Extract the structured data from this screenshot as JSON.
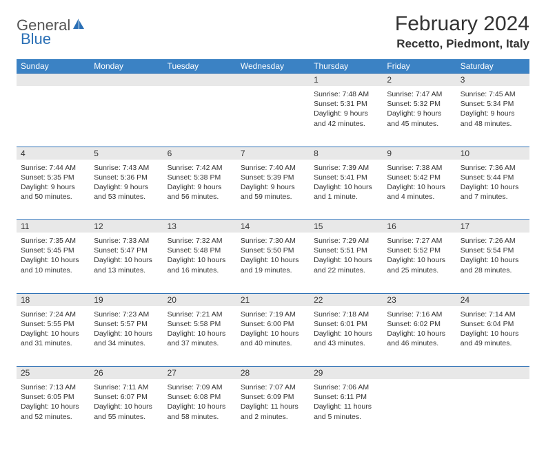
{
  "logo": {
    "text1": "General",
    "text2": "Blue"
  },
  "title": "February 2024",
  "location": "Recetto, Piedmont, Italy",
  "colors": {
    "header_bg": "#3b82c4",
    "header_text": "#ffffff",
    "border": "#2a6fb5",
    "daynum_bg": "#e8e8e8",
    "text": "#333333",
    "logo_gray": "#555555",
    "logo_blue": "#2a6fb5",
    "page_bg": "#ffffff"
  },
  "fonts": {
    "title_size": 30,
    "location_size": 17,
    "weekday_size": 12,
    "daynum_size": 12,
    "info_size": 10.5
  },
  "weekdays": [
    "Sunday",
    "Monday",
    "Tuesday",
    "Wednesday",
    "Thursday",
    "Friday",
    "Saturday"
  ],
  "weeks": [
    [
      null,
      null,
      null,
      null,
      {
        "n": "1",
        "sr": "Sunrise: 7:48 AM",
        "ss": "Sunset: 5:31 PM",
        "d1": "Daylight: 9 hours",
        "d2": "and 42 minutes."
      },
      {
        "n": "2",
        "sr": "Sunrise: 7:47 AM",
        "ss": "Sunset: 5:32 PM",
        "d1": "Daylight: 9 hours",
        "d2": "and 45 minutes."
      },
      {
        "n": "3",
        "sr": "Sunrise: 7:45 AM",
        "ss": "Sunset: 5:34 PM",
        "d1": "Daylight: 9 hours",
        "d2": "and 48 minutes."
      }
    ],
    [
      {
        "n": "4",
        "sr": "Sunrise: 7:44 AM",
        "ss": "Sunset: 5:35 PM",
        "d1": "Daylight: 9 hours",
        "d2": "and 50 minutes."
      },
      {
        "n": "5",
        "sr": "Sunrise: 7:43 AM",
        "ss": "Sunset: 5:36 PM",
        "d1": "Daylight: 9 hours",
        "d2": "and 53 minutes."
      },
      {
        "n": "6",
        "sr": "Sunrise: 7:42 AM",
        "ss": "Sunset: 5:38 PM",
        "d1": "Daylight: 9 hours",
        "d2": "and 56 minutes."
      },
      {
        "n": "7",
        "sr": "Sunrise: 7:40 AM",
        "ss": "Sunset: 5:39 PM",
        "d1": "Daylight: 9 hours",
        "d2": "and 59 minutes."
      },
      {
        "n": "8",
        "sr": "Sunrise: 7:39 AM",
        "ss": "Sunset: 5:41 PM",
        "d1": "Daylight: 10 hours",
        "d2": "and 1 minute."
      },
      {
        "n": "9",
        "sr": "Sunrise: 7:38 AM",
        "ss": "Sunset: 5:42 PM",
        "d1": "Daylight: 10 hours",
        "d2": "and 4 minutes."
      },
      {
        "n": "10",
        "sr": "Sunrise: 7:36 AM",
        "ss": "Sunset: 5:44 PM",
        "d1": "Daylight: 10 hours",
        "d2": "and 7 minutes."
      }
    ],
    [
      {
        "n": "11",
        "sr": "Sunrise: 7:35 AM",
        "ss": "Sunset: 5:45 PM",
        "d1": "Daylight: 10 hours",
        "d2": "and 10 minutes."
      },
      {
        "n": "12",
        "sr": "Sunrise: 7:33 AM",
        "ss": "Sunset: 5:47 PM",
        "d1": "Daylight: 10 hours",
        "d2": "and 13 minutes."
      },
      {
        "n": "13",
        "sr": "Sunrise: 7:32 AM",
        "ss": "Sunset: 5:48 PM",
        "d1": "Daylight: 10 hours",
        "d2": "and 16 minutes."
      },
      {
        "n": "14",
        "sr": "Sunrise: 7:30 AM",
        "ss": "Sunset: 5:50 PM",
        "d1": "Daylight: 10 hours",
        "d2": "and 19 minutes."
      },
      {
        "n": "15",
        "sr": "Sunrise: 7:29 AM",
        "ss": "Sunset: 5:51 PM",
        "d1": "Daylight: 10 hours",
        "d2": "and 22 minutes."
      },
      {
        "n": "16",
        "sr": "Sunrise: 7:27 AM",
        "ss": "Sunset: 5:52 PM",
        "d1": "Daylight: 10 hours",
        "d2": "and 25 minutes."
      },
      {
        "n": "17",
        "sr": "Sunrise: 7:26 AM",
        "ss": "Sunset: 5:54 PM",
        "d1": "Daylight: 10 hours",
        "d2": "and 28 minutes."
      }
    ],
    [
      {
        "n": "18",
        "sr": "Sunrise: 7:24 AM",
        "ss": "Sunset: 5:55 PM",
        "d1": "Daylight: 10 hours",
        "d2": "and 31 minutes."
      },
      {
        "n": "19",
        "sr": "Sunrise: 7:23 AM",
        "ss": "Sunset: 5:57 PM",
        "d1": "Daylight: 10 hours",
        "d2": "and 34 minutes."
      },
      {
        "n": "20",
        "sr": "Sunrise: 7:21 AM",
        "ss": "Sunset: 5:58 PM",
        "d1": "Daylight: 10 hours",
        "d2": "and 37 minutes."
      },
      {
        "n": "21",
        "sr": "Sunrise: 7:19 AM",
        "ss": "Sunset: 6:00 PM",
        "d1": "Daylight: 10 hours",
        "d2": "and 40 minutes."
      },
      {
        "n": "22",
        "sr": "Sunrise: 7:18 AM",
        "ss": "Sunset: 6:01 PM",
        "d1": "Daylight: 10 hours",
        "d2": "and 43 minutes."
      },
      {
        "n": "23",
        "sr": "Sunrise: 7:16 AM",
        "ss": "Sunset: 6:02 PM",
        "d1": "Daylight: 10 hours",
        "d2": "and 46 minutes."
      },
      {
        "n": "24",
        "sr": "Sunrise: 7:14 AM",
        "ss": "Sunset: 6:04 PM",
        "d1": "Daylight: 10 hours",
        "d2": "and 49 minutes."
      }
    ],
    [
      {
        "n": "25",
        "sr": "Sunrise: 7:13 AM",
        "ss": "Sunset: 6:05 PM",
        "d1": "Daylight: 10 hours",
        "d2": "and 52 minutes."
      },
      {
        "n": "26",
        "sr": "Sunrise: 7:11 AM",
        "ss": "Sunset: 6:07 PM",
        "d1": "Daylight: 10 hours",
        "d2": "and 55 minutes."
      },
      {
        "n": "27",
        "sr": "Sunrise: 7:09 AM",
        "ss": "Sunset: 6:08 PM",
        "d1": "Daylight: 10 hours",
        "d2": "and 58 minutes."
      },
      {
        "n": "28",
        "sr": "Sunrise: 7:07 AM",
        "ss": "Sunset: 6:09 PM",
        "d1": "Daylight: 11 hours",
        "d2": "and 2 minutes."
      },
      {
        "n": "29",
        "sr": "Sunrise: 7:06 AM",
        "ss": "Sunset: 6:11 PM",
        "d1": "Daylight: 11 hours",
        "d2": "and 5 minutes."
      },
      null,
      null
    ]
  ]
}
